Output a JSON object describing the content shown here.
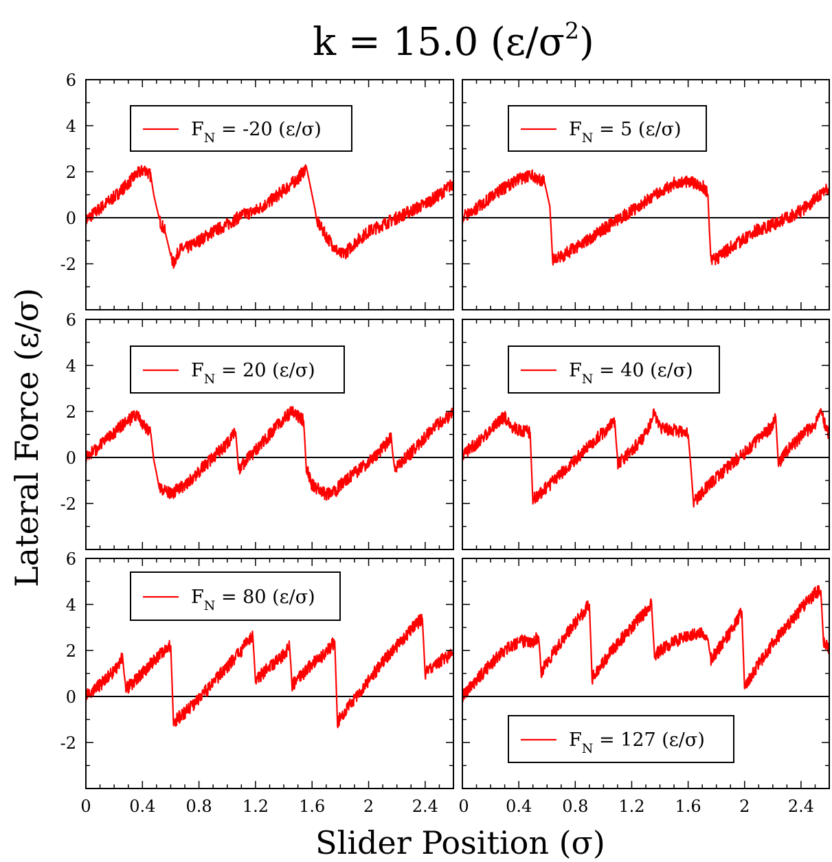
{
  "title": {
    "main": "k = 15.0 (ε/σ",
    "sup": "2",
    "close": ")"
  },
  "xlabel": "Slider Position (σ)",
  "ylabel": "Lateral Force (ε/σ)",
  "colors": {
    "series": "#ff0000",
    "axes": "#000000",
    "background": "#ffffff"
  },
  "chart_data": [
    {
      "type": "line",
      "legend": {
        "pre": "F",
        "sub": "N",
        "post": " = -20 (ε/σ)",
        "placement": "top-left"
      },
      "xlim": [
        0,
        2.6
      ],
      "ylim": [
        -4,
        6
      ],
      "x": [
        0,
        0.1,
        0.2,
        0.3,
        0.36,
        0.42,
        0.46,
        0.48,
        0.52,
        0.56,
        0.6,
        0.62,
        0.66,
        0.72,
        0.8,
        0.9,
        1.0,
        1.1,
        1.2,
        1.3,
        1.4,
        1.5,
        1.56,
        1.6,
        1.64,
        1.7,
        1.76,
        1.8,
        1.84,
        1.9,
        2.0,
        2.1,
        2.2,
        2.3,
        2.4,
        2.5,
        2.6
      ],
      "y": [
        -0.1,
        0.4,
        0.9,
        1.5,
        1.9,
        2.1,
        1.8,
        1.0,
        -0.1,
        -0.6,
        -1.6,
        -2.0,
        -1.4,
        -1.3,
        -1.0,
        -0.6,
        -0.3,
        0.1,
        0.3,
        0.7,
        1.2,
        1.7,
        2.2,
        1.0,
        -0.2,
        -0.8,
        -1.3,
        -1.6,
        -1.5,
        -1.1,
        -0.6,
        -0.3,
        0.0,
        0.3,
        0.6,
        1.0,
        1.5
      ]
    },
    {
      "type": "line",
      "legend": {
        "pre": "F",
        "sub": "N",
        "post": " = 5 (ε/σ)",
        "placement": "top-center"
      },
      "xlim": [
        0,
        2.6
      ],
      "ylim": [
        -4,
        6
      ],
      "x": [
        0,
        0.1,
        0.2,
        0.3,
        0.4,
        0.5,
        0.58,
        0.62,
        0.64,
        0.7,
        0.8,
        0.9,
        1.0,
        1.1,
        1.2,
        1.3,
        1.4,
        1.5,
        1.6,
        1.7,
        1.74,
        1.76,
        1.8,
        1.9,
        2.0,
        2.1,
        2.2,
        2.3,
        2.4,
        2.5,
        2.6
      ],
      "y": [
        0.0,
        0.4,
        0.9,
        1.3,
        1.7,
        1.8,
        1.6,
        0.5,
        -1.8,
        -1.7,
        -1.3,
        -0.9,
        -0.5,
        -0.1,
        0.3,
        0.7,
        1.1,
        1.5,
        1.6,
        1.4,
        1.0,
        -1.9,
        -1.8,
        -1.3,
        -0.9,
        -0.5,
        -0.3,
        0.0,
        0.3,
        0.8,
        1.3
      ]
    },
    {
      "type": "line",
      "legend": {
        "pre": "F",
        "sub": "N",
        "post": " = 20 (ε/σ)",
        "placement": "top-left"
      },
      "xlim": [
        0,
        2.6
      ],
      "ylim": [
        -4,
        6
      ],
      "x": [
        0,
        0.1,
        0.2,
        0.3,
        0.36,
        0.42,
        0.46,
        0.48,
        0.52,
        0.6,
        0.7,
        0.8,
        0.9,
        1.0,
        1.06,
        1.08,
        1.2,
        1.3,
        1.4,
        1.46,
        1.54,
        1.56,
        1.6,
        1.7,
        1.76,
        1.8,
        1.9,
        2.0,
        2.1,
        2.16,
        2.18,
        2.3,
        2.4,
        2.5,
        2.6
      ],
      "y": [
        0.0,
        0.5,
        1.1,
        1.6,
        1.9,
        1.3,
        1.0,
        -0.1,
        -1.3,
        -1.6,
        -1.2,
        -0.6,
        0.0,
        0.6,
        1.1,
        -0.5,
        0.3,
        1.0,
        1.7,
        2.0,
        1.6,
        -0.4,
        -1.2,
        -1.6,
        -1.5,
        -1.2,
        -0.7,
        -0.2,
        0.4,
        0.9,
        -0.5,
        0.2,
        0.9,
        1.5,
        1.9
      ]
    },
    {
      "type": "line",
      "legend": {
        "pre": "F",
        "sub": "N",
        "post": " = 40 (ε/σ)",
        "placement": "top-center"
      },
      "xlim": [
        0,
        2.6
      ],
      "ylim": [
        -4,
        6
      ],
      "x": [
        0,
        0.1,
        0.2,
        0.3,
        0.34,
        0.4,
        0.48,
        0.5,
        0.52,
        0.6,
        0.7,
        0.8,
        0.9,
        1.0,
        1.08,
        1.1,
        1.2,
        1.3,
        1.36,
        1.4,
        1.5,
        1.6,
        1.64,
        1.66,
        1.7,
        1.8,
        1.9,
        2.0,
        2.1,
        2.2,
        2.22,
        2.24,
        2.3,
        2.4,
        2.5,
        2.54,
        2.6
      ],
      "y": [
        0.1,
        0.6,
        1.2,
        1.8,
        1.3,
        1.2,
        1.1,
        -1.9,
        -1.7,
        -1.3,
        -0.7,
        -0.1,
        0.5,
        1.1,
        1.6,
        -0.3,
        0.3,
        1.0,
        1.9,
        1.3,
        1.2,
        1.0,
        -1.9,
        -1.8,
        -1.5,
        -0.9,
        -0.3,
        0.2,
        0.8,
        1.4,
        1.8,
        -0.3,
        0.3,
        0.9,
        1.5,
        1.9,
        1.0
      ]
    },
    {
      "type": "line",
      "legend": {
        "pre": "F",
        "sub": "N",
        "post": " = 80 (ε/σ)",
        "placement": "top-left"
      },
      "xlim": [
        0,
        2.6
      ],
      "ylim": [
        -4,
        6
      ],
      "x": [
        0,
        0.1,
        0.2,
        0.26,
        0.28,
        0.4,
        0.5,
        0.6,
        0.62,
        0.7,
        0.8,
        0.9,
        1.0,
        1.1,
        1.18,
        1.2,
        1.3,
        1.4,
        1.44,
        1.46,
        1.6,
        1.7,
        1.76,
        1.78,
        1.9,
        2.0,
        2.1,
        2.2,
        2.3,
        2.38,
        2.4,
        2.5,
        2.6
      ],
      "y": [
        0.0,
        0.5,
        1.1,
        1.7,
        0.3,
        1.0,
        1.7,
        2.2,
        -1.1,
        -0.7,
        -0.1,
        0.6,
        1.3,
        2.0,
        2.7,
        0.7,
        1.3,
        1.8,
        2.2,
        0.5,
        1.4,
        1.9,
        2.4,
        -1.1,
        -0.1,
        0.7,
        1.5,
        2.2,
        2.9,
        3.4,
        1.0,
        1.5,
        1.9
      ]
    },
    {
      "type": "line",
      "legend": {
        "pre": "F",
        "sub": "N",
        "post": " = 127 (ε/σ)",
        "placement": "bottom-center"
      },
      "xlim": [
        0,
        2.6
      ],
      "ylim": [
        -4,
        6
      ],
      "x": [
        0,
        0.1,
        0.2,
        0.3,
        0.4,
        0.5,
        0.54,
        0.56,
        0.7,
        0.8,
        0.9,
        0.92,
        1.0,
        1.1,
        1.2,
        1.3,
        1.34,
        1.36,
        1.5,
        1.6,
        1.7,
        1.74,
        1.76,
        1.9,
        1.98,
        2.0,
        2.1,
        2.2,
        2.3,
        2.4,
        2.5,
        2.54,
        2.56,
        2.6
      ],
      "y": [
        0.0,
        0.7,
        1.4,
        2.0,
        2.4,
        2.4,
        2.6,
        1.1,
        2.4,
        3.2,
        4.0,
        0.8,
        1.5,
        2.3,
        3.0,
        3.7,
        4.1,
        1.8,
        2.4,
        2.6,
        2.8,
        2.5,
        1.6,
        2.8,
        3.7,
        0.4,
        1.4,
        2.3,
        3.1,
        3.8,
        4.5,
        4.6,
        2.4,
        2.0
      ]
    }
  ],
  "axes": {
    "xticks": [
      "0",
      "0.4",
      "0.8",
      "1.2",
      "1.6",
      "2",
      "2.4"
    ],
    "yticks": [
      "6",
      "4",
      "2",
      "0",
      "-2"
    ]
  }
}
